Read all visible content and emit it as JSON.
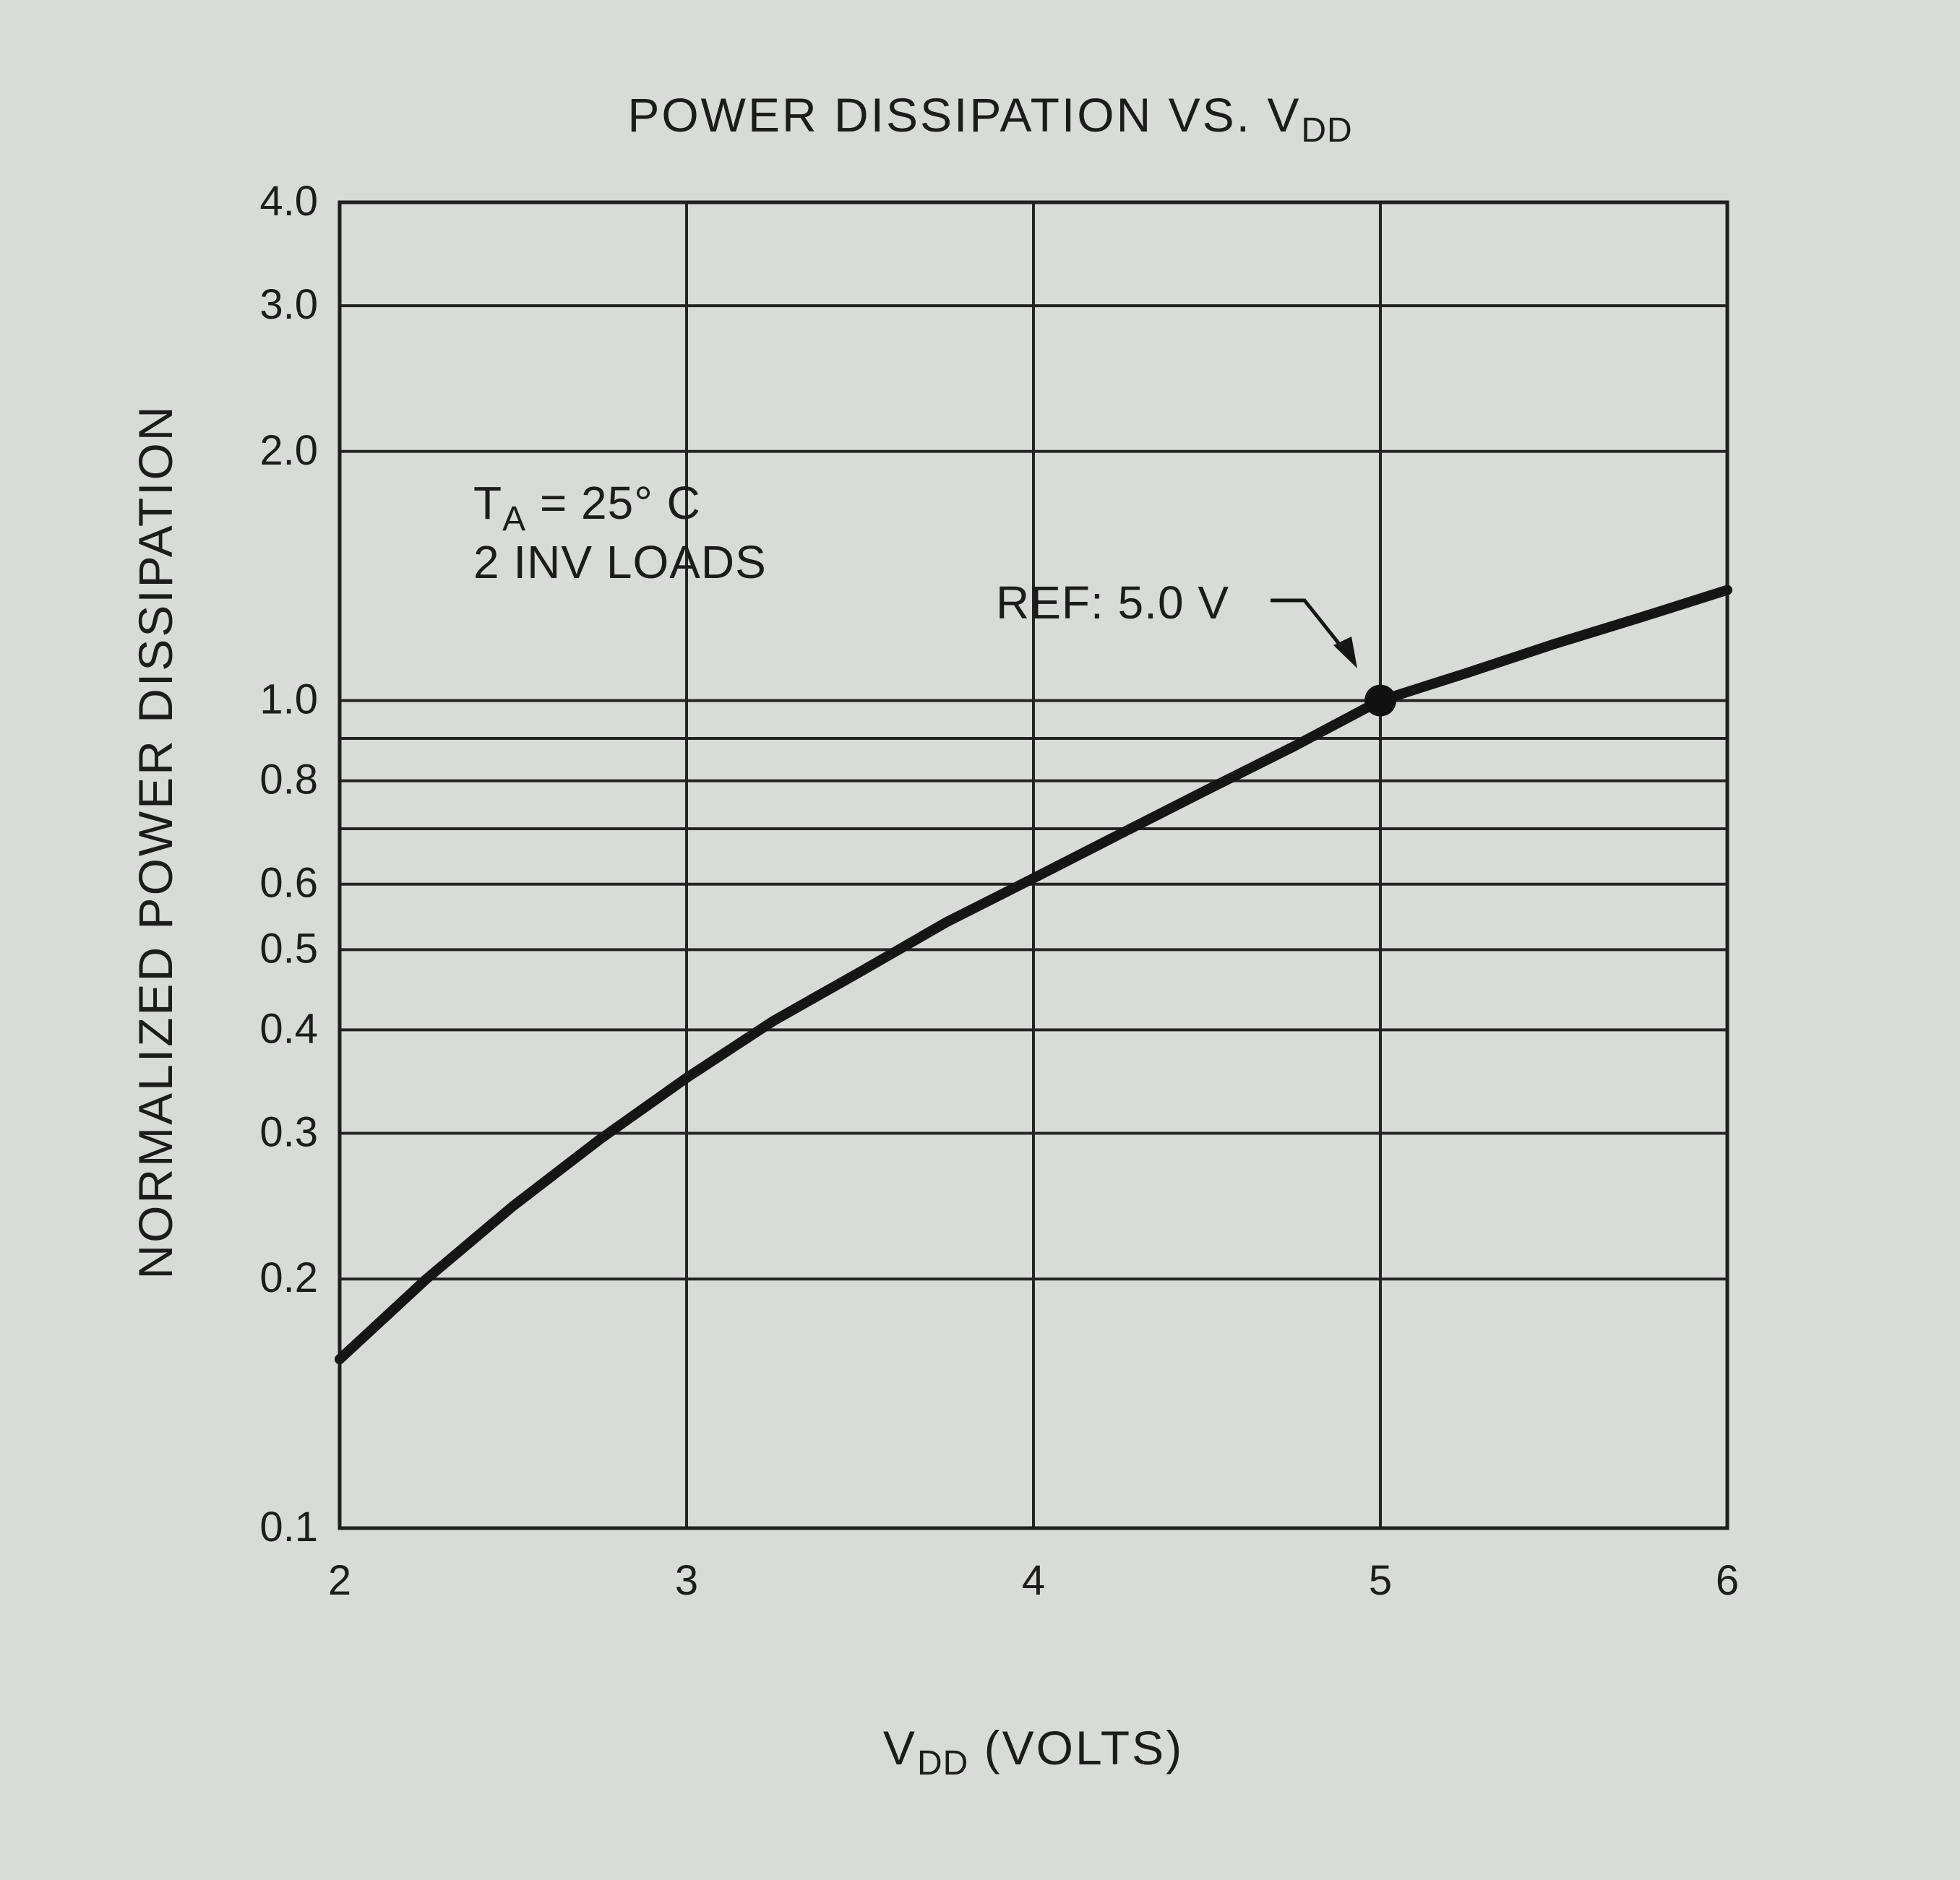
{
  "chart_data": {
    "type": "line",
    "title": "POWER DISSIPATION VS. V",
    "title_subscript": "DD",
    "xlabel_main": "V",
    "xlabel_subscript": "DD",
    "xlabel_rest": " (VOLTS)",
    "ylabel": "NORMALIZED POWER DISSIPATION",
    "x_scale": "linear",
    "y_scale": "log",
    "xlim": [
      2,
      6
    ],
    "ylim": [
      0.1,
      4.0
    ],
    "x_ticks": [
      2,
      3,
      4,
      5,
      6
    ],
    "x_tick_labels": [
      "2",
      "3",
      "4",
      "5",
      "6"
    ],
    "y_tick_labels": [
      {
        "value": 0.1,
        "label": "0.1"
      },
      {
        "value": 0.2,
        "label": "0.2"
      },
      {
        "value": 0.3,
        "label": "0.3"
      },
      {
        "value": 0.4,
        "label": "0.4"
      },
      {
        "value": 0.5,
        "label": "0.5"
      },
      {
        "value": 0.6,
        "label": "0.6"
      },
      {
        "value": 0.8,
        "label": "0.8"
      },
      {
        "value": 1.0,
        "label": "1.0"
      },
      {
        "value": 2.0,
        "label": "2.0"
      },
      {
        "value": 3.0,
        "label": "3.0"
      },
      {
        "value": 4.0,
        "label": "4.0"
      }
    ],
    "y_gridlines": [
      0.2,
      0.3,
      0.4,
      0.5,
      0.6,
      0.7,
      0.8,
      0.9,
      1.0,
      2.0,
      3.0
    ],
    "grid": true,
    "series": [
      {
        "x": [
          2.0,
          2.25,
          2.5,
          2.75,
          3.0,
          3.25,
          3.5,
          3.75,
          4.0,
          4.25,
          4.5,
          4.75,
          5.0,
          5.25,
          5.5,
          5.75,
          6.0
        ],
        "y": [
          0.16,
          0.2,
          0.245,
          0.295,
          0.35,
          0.41,
          0.47,
          0.54,
          0.61,
          0.69,
          0.78,
          0.88,
          1.0,
          1.08,
          1.17,
          1.26,
          1.36
        ]
      }
    ],
    "annotations": {
      "conditions_line1_main": "T",
      "conditions_line1_sub": "A",
      "conditions_line1_rest": " = 25° C",
      "conditions_line2": "2 INV LOADS",
      "reference_label": "REF: 5.0 V",
      "reference_point": {
        "x": 5.0,
        "y": 1.0
      }
    }
  }
}
